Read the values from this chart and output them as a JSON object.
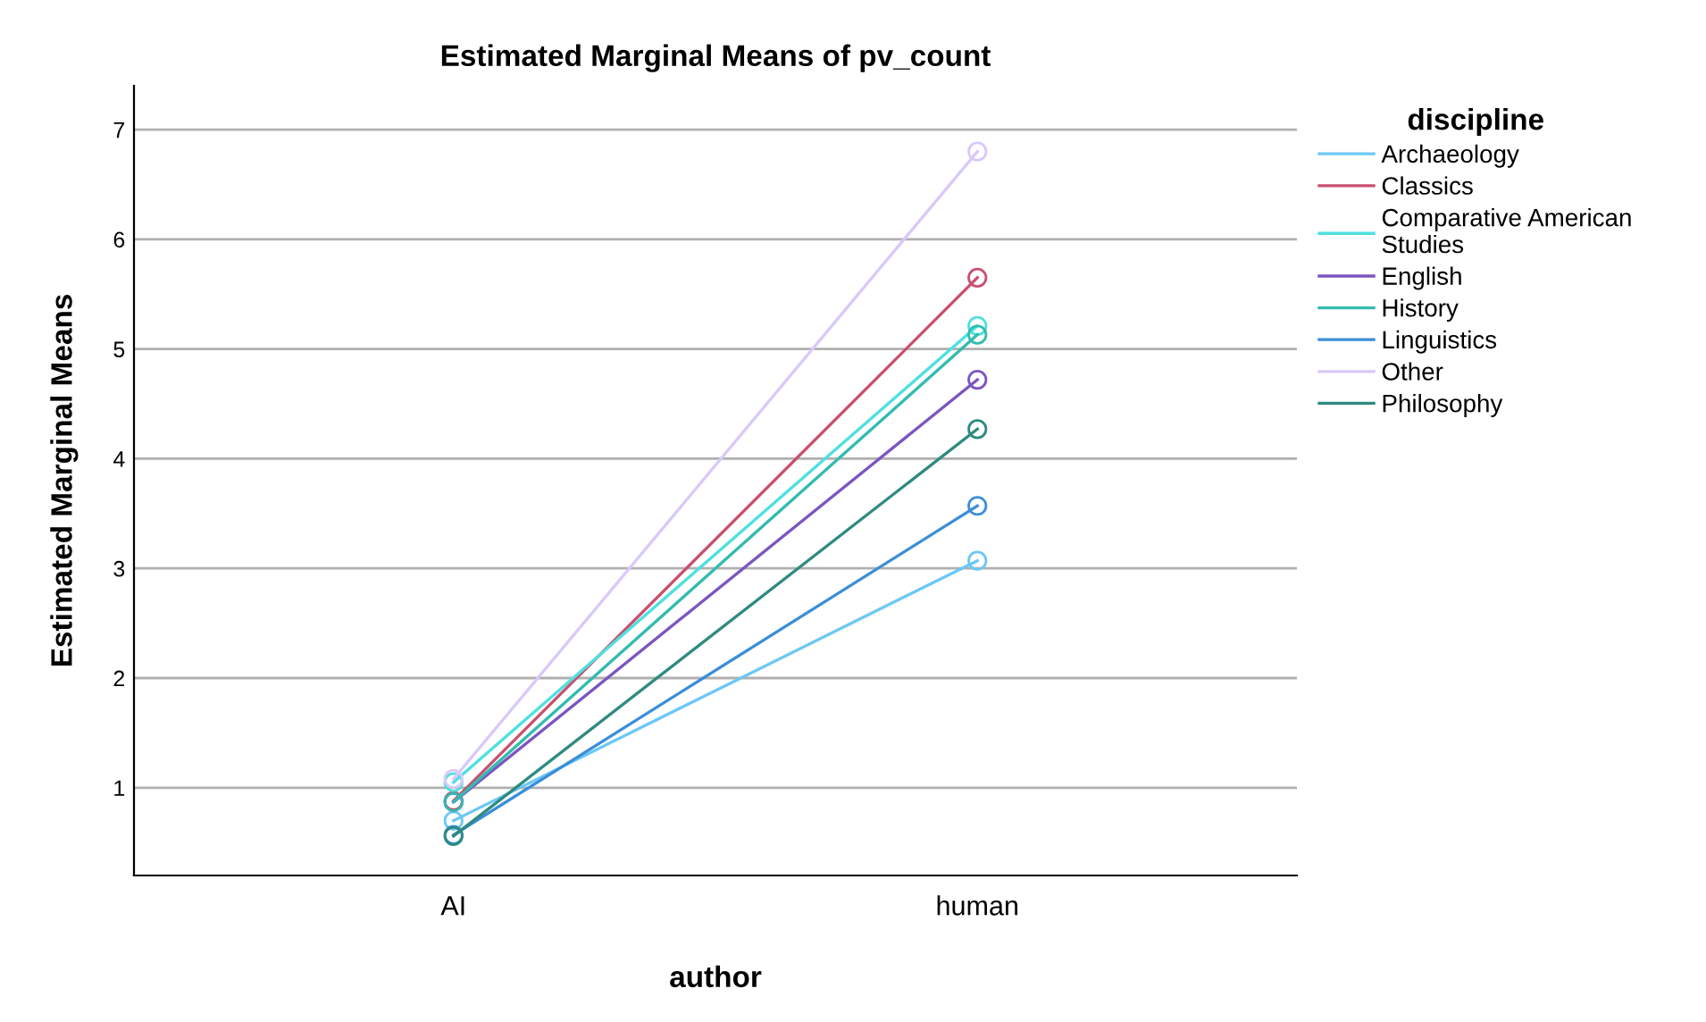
{
  "chart_data": {
    "type": "line",
    "title": "Estimated Marginal Means of pv_count",
    "xlabel": "author",
    "ylabel": "Estimated Marginal Means",
    "legend_title": "discipline",
    "categories": [
      "AI",
      "human"
    ],
    "series": [
      {
        "name": "Archaeology",
        "color": "#6cc8f5",
        "values": [
          0.7,
          3.07
        ]
      },
      {
        "name": "Classics",
        "color": "#c8506e",
        "values": [
          0.88,
          5.65
        ]
      },
      {
        "name": "Comparative American Studies",
        "color": "#4fe0e0",
        "values": [
          1.05,
          5.21
        ]
      },
      {
        "name": "English",
        "color": "#7b55c0",
        "values": [
          0.87,
          4.72
        ]
      },
      {
        "name": "History",
        "color": "#33bbb0",
        "values": [
          0.87,
          5.13
        ]
      },
      {
        "name": "Linguistics",
        "color": "#3a8ed8",
        "values": [
          0.57,
          3.57
        ]
      },
      {
        "name": "Other",
        "color": "#d9c9f9",
        "values": [
          1.08,
          6.8
        ]
      },
      {
        "name": "Philosophy",
        "color": "#2e8a80",
        "values": [
          0.56,
          4.27
        ]
      }
    ],
    "ylim": [
      0.2,
      7.4
    ],
    "yticks": [
      1,
      2,
      3,
      4,
      5,
      6,
      7
    ],
    "grid": "y",
    "legend": "top right",
    "marker": "circle",
    "line_style": "solid"
  }
}
